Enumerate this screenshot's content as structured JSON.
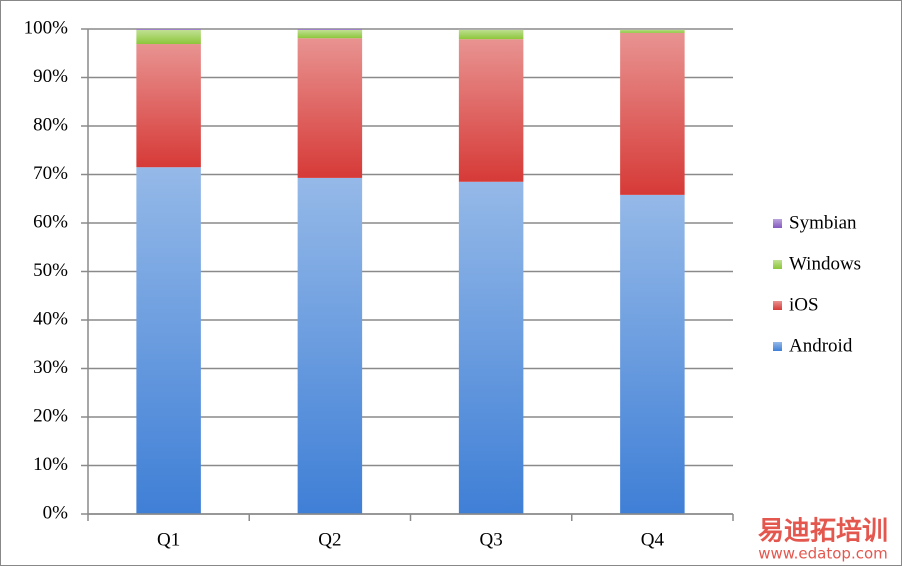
{
  "chart_data": {
    "type": "stacked-bar",
    "categories": [
      "Q1",
      "Q2",
      "Q3",
      "Q4"
    ],
    "series": [
      {
        "name": "Android",
        "color": "#3f7fd6",
        "values": [
          71.5,
          69.3,
          68.5,
          65.8
        ]
      },
      {
        "name": "iOS",
        "color": "#d63a37",
        "values": [
          25.4,
          28.8,
          29.4,
          33.4
        ]
      },
      {
        "name": "Windows",
        "color": "#8cc63a",
        "values": [
          2.9,
          1.7,
          2.0,
          0.7
        ]
      },
      {
        "name": "Symbian",
        "color": "#8459c0",
        "values": [
          0.2,
          0.2,
          0.1,
          0.1
        ]
      }
    ],
    "ylim": [
      0,
      100
    ],
    "yticks": [
      {
        "value": 0,
        "label": "0%"
      },
      {
        "value": 10,
        "label": "10%"
      },
      {
        "value": 20,
        "label": "20%"
      },
      {
        "value": 30,
        "label": "30%"
      },
      {
        "value": 40,
        "label": "40%"
      },
      {
        "value": 50,
        "label": "50%"
      },
      {
        "value": 60,
        "label": "60%"
      },
      {
        "value": 70,
        "label": "70%"
      },
      {
        "value": 80,
        "label": "80%"
      },
      {
        "value": 90,
        "label": "90%"
      },
      {
        "value": 100,
        "label": "100%"
      }
    ],
    "grid": true,
    "legend": "right"
  },
  "watermark": {
    "text": "易迪拓培训",
    "url": "www.edatop.com"
  }
}
